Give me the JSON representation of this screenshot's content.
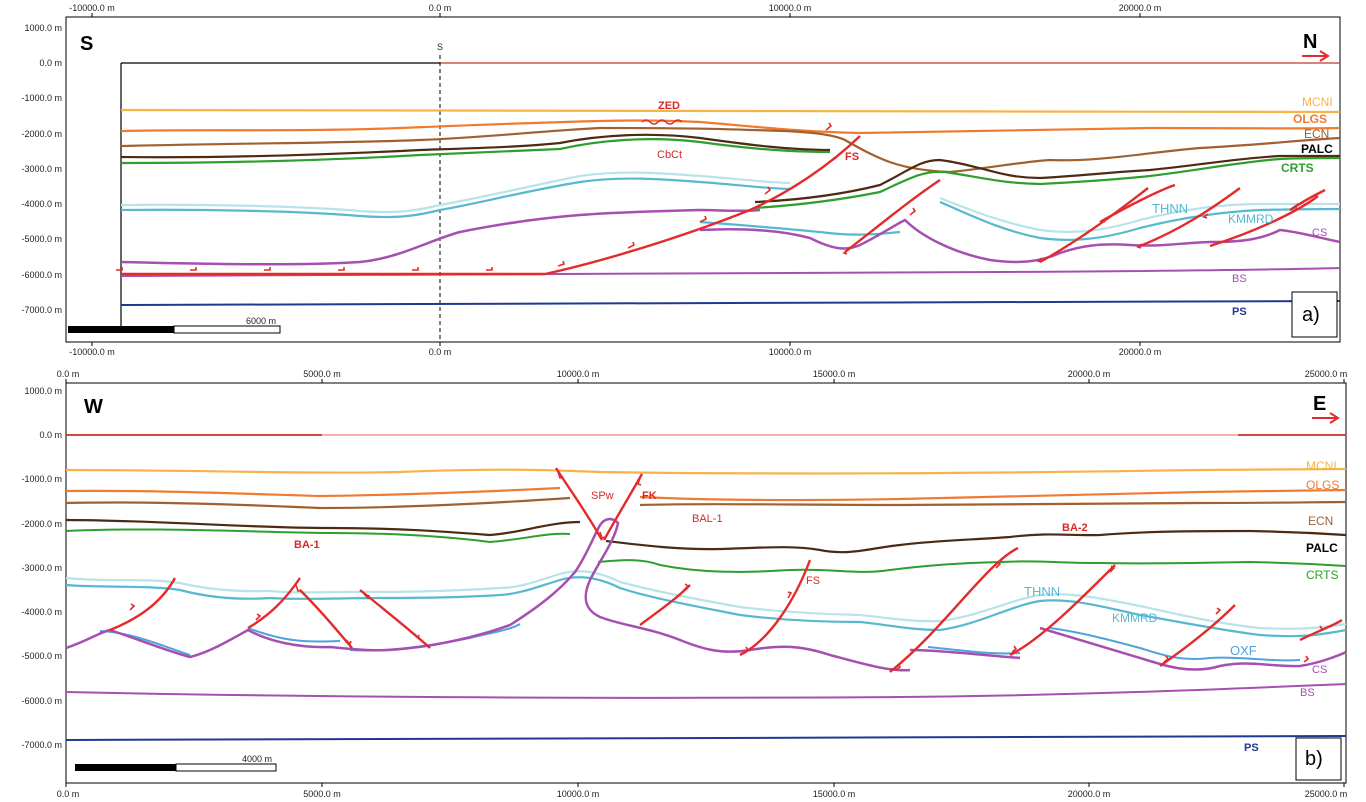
{
  "colors": {
    "MCNI": "#f7b348",
    "OLGS": "#ef7a30",
    "ECN": "#a0602f",
    "PALC": "#4d2a12",
    "CRTS": "#2e9e2e",
    "THNN": "#b8e3ea",
    "KMMRD": "#57b8cf",
    "OXF": "#4fa3dc",
    "CS": "#a64fb0",
    "BS": "#a64fb0",
    "PS": "#1f3894",
    "fault": "#e32b2b"
  },
  "panel_a": {
    "letter": "a)",
    "orientation_left": "S",
    "orientation_right": "N",
    "x_ticks": [
      "-10000.0 m",
      "0.0 m",
      "10000.0 m",
      "20000.0 m"
    ],
    "y_ticks": [
      "1000.0 m",
      "0.0 m",
      "-1000.0 m",
      "-2000.0 m",
      "-3000.0 m",
      "-4000.0 m",
      "-5000.0 m",
      "-6000.0 m",
      "-7000.0 m"
    ],
    "section_marker": "S",
    "scale_label": "6000 m",
    "inline_labels": [
      "ZED",
      "CbCt",
      "FS"
    ],
    "unit_labels": [
      "MCNI",
      "OLGS",
      "ECN",
      "PALC",
      "CRTS",
      "THNN",
      "KMMRD",
      "CS",
      "BS",
      "PS"
    ]
  },
  "panel_b": {
    "letter": "b)",
    "orientation_left": "W",
    "orientation_right": "E",
    "x_ticks": [
      "0.0 m",
      "5000.0 m",
      "10000.0 m",
      "15000.0 m",
      "20000.0 m",
      "25000.0 m"
    ],
    "y_ticks": [
      "1000.0 m",
      "0.0 m",
      "-1000.0 m",
      "-2000.0 m",
      "-3000.0 m",
      "-4000.0 m",
      "-5000.0 m",
      "-6000.0 m",
      "-7000.0 m"
    ],
    "scale_label": "4000 m",
    "inline_labels": [
      "SPw",
      "FK",
      "BAL-1",
      "BA-1",
      "BA-2",
      "FS"
    ],
    "unit_labels": [
      "MCNI",
      "OLGS",
      "ECN",
      "PALC",
      "CRTS",
      "THNN",
      "KMMRD",
      "OXF",
      "CS",
      "BS",
      "PS"
    ]
  }
}
